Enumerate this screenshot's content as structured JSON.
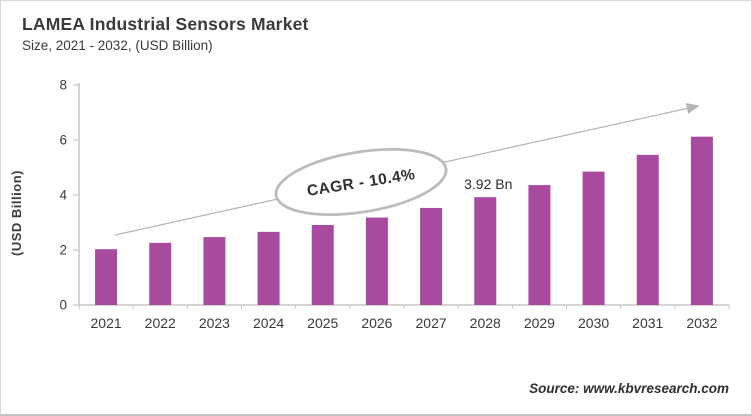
{
  "header": {
    "title": "LAMEA Industrial Sensors Market",
    "subtitle": "Size, 2021 - 2032, (USD Billion)"
  },
  "footer": {
    "source": "Source: www.kbvresearch.com"
  },
  "chart_data": {
    "type": "bar",
    "title": "LAMEA Industrial Sensors Market",
    "subtitle": "Size, 2021 - 2032, (USD Billion)",
    "categories": [
      "2021",
      "2022",
      "2023",
      "2024",
      "2025",
      "2026",
      "2027",
      "2028",
      "2029",
      "2030",
      "2031",
      "2032"
    ],
    "values": [
      2.03,
      2.26,
      2.47,
      2.66,
      2.91,
      3.18,
      3.53,
      3.92,
      4.36,
      4.85,
      5.46,
      6.12
    ],
    "xlabel": "",
    "ylabel": "(USD Billion)",
    "ylim": [
      0,
      8
    ],
    "yticks": [
      0,
      2,
      4,
      6,
      8
    ],
    "grid": false,
    "legend": "none",
    "bar_color": "#a84b9f",
    "axis_color": "#c6c6c6",
    "tick_label_color": "#3d3d3d",
    "annotation_color": "#2e2e2e",
    "callout_stroke_color": "#bcbcbc",
    "arrow_color": "#b3b3b3",
    "annotations": [
      {
        "type": "ellipse-callout",
        "label": "CAGR - 10.4%"
      },
      {
        "type": "data-label",
        "category": "2028",
        "label": "3.92 Bn"
      },
      {
        "type": "trend-arrow"
      }
    ]
  }
}
